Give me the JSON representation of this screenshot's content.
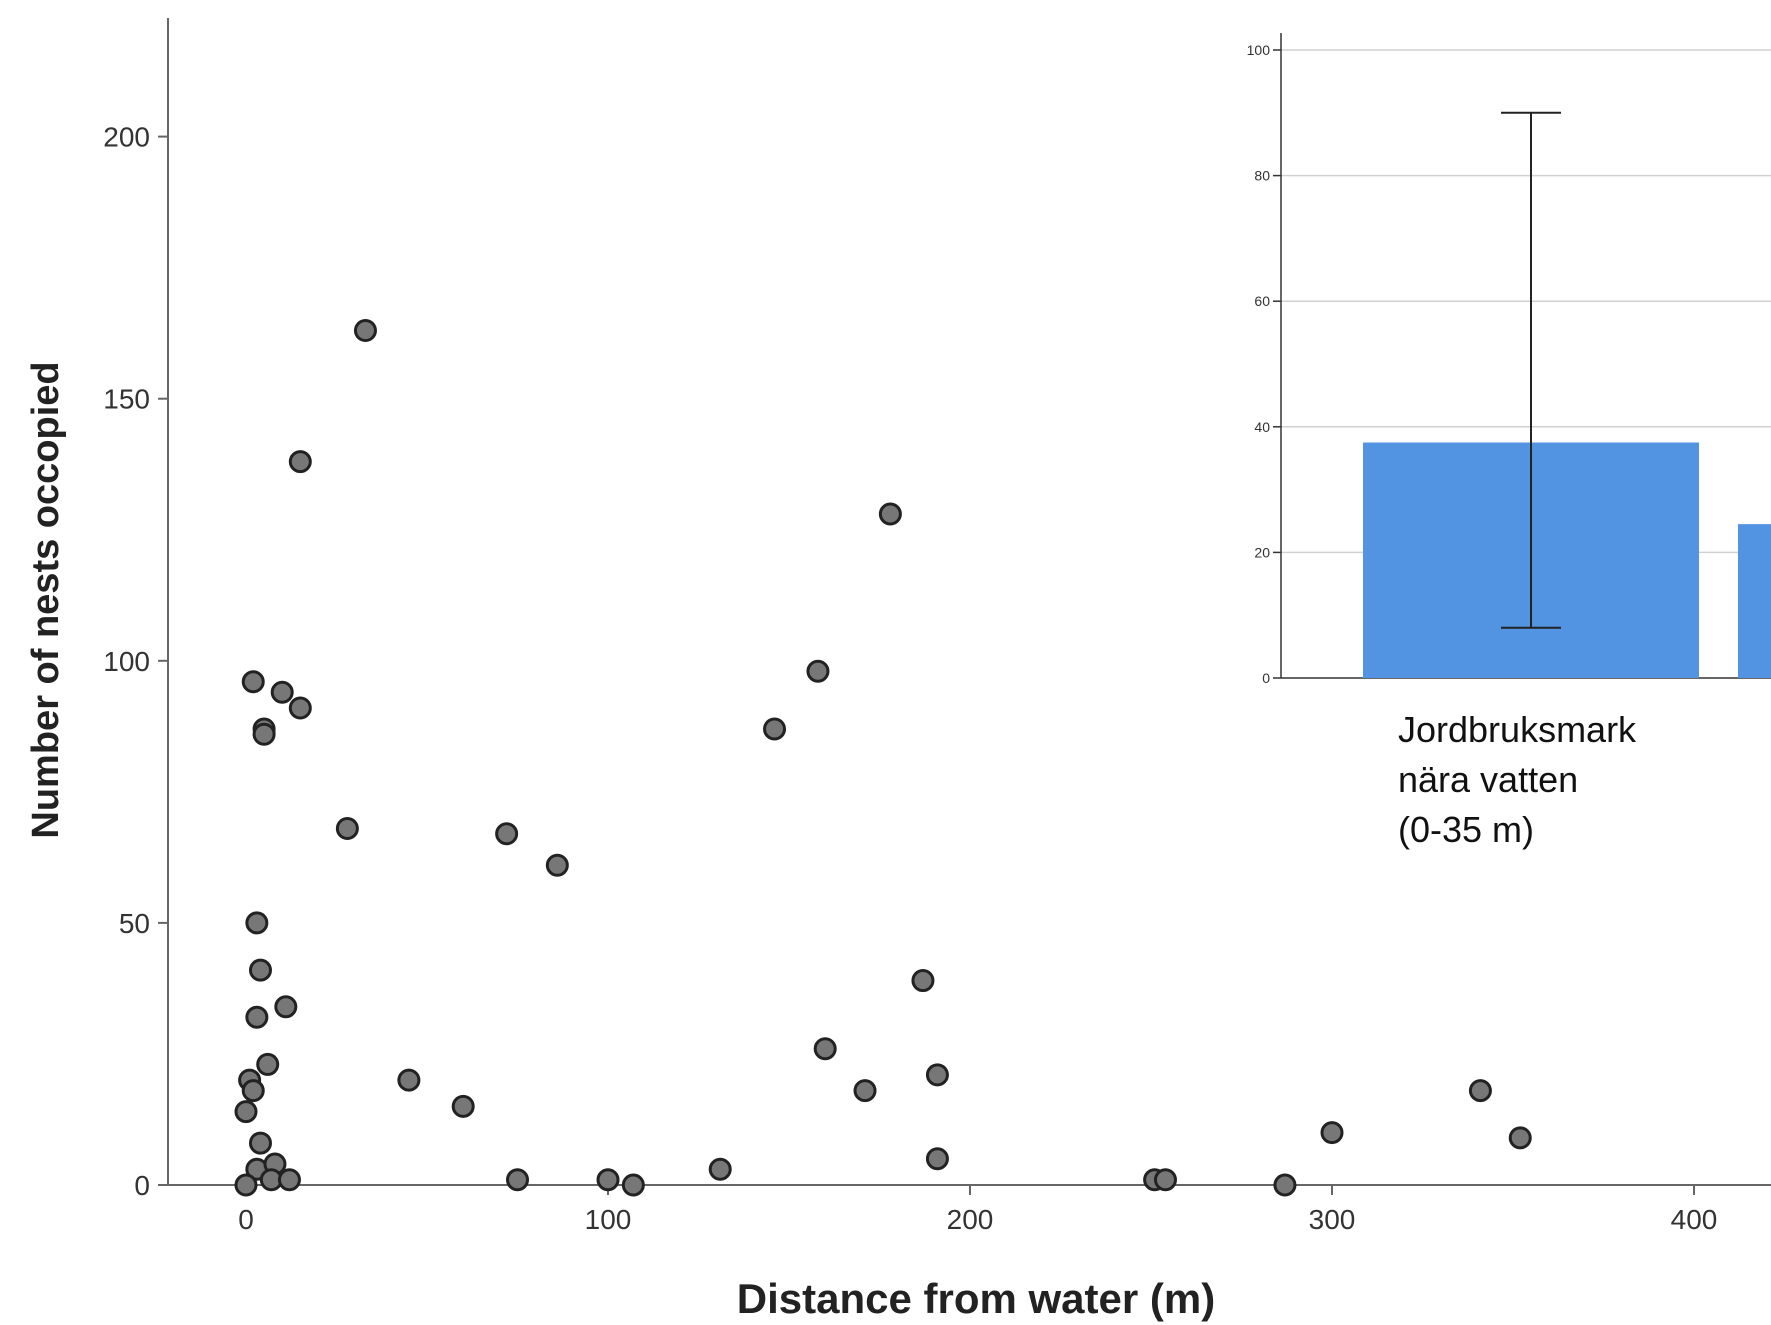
{
  "chart_data": [
    {
      "type": "scatter",
      "title": "",
      "xlabel": "Distance from water (m)",
      "ylabel": "Number of nests occopied",
      "xlim": [
        -20,
        420
      ],
      "ylim": [
        0,
        220
      ],
      "x_ticks": [
        0,
        100,
        200,
        300,
        400
      ],
      "y_ticks": [
        0,
        50,
        100,
        150,
        200
      ],
      "grid": false,
      "point_color": "#777777",
      "point_edge_color": "#222222",
      "x": [
        33,
        15,
        178,
        158,
        146,
        2,
        10,
        15,
        5,
        5,
        28,
        72,
        86,
        3,
        4,
        187,
        11,
        3,
        6,
        160,
        1,
        191,
        45,
        2,
        171,
        60,
        0,
        341,
        300,
        352,
        4,
        191,
        131,
        3,
        8,
        0,
        7,
        12,
        75,
        100,
        107,
        251,
        254,
        287
      ],
      "y": [
        163,
        138,
        128,
        98,
        87,
        96,
        94,
        91,
        87,
        86,
        68,
        67,
        61,
        50,
        41,
        39,
        34,
        32,
        23,
        26,
        20,
        21,
        20,
        18,
        18,
        15,
        14,
        18,
        10,
        9,
        8,
        5,
        3,
        3,
        4,
        0,
        1,
        1,
        1,
        1,
        0,
        1,
        1,
        0
      ]
    },
    {
      "type": "bar",
      "title": "",
      "categories": [
        "Jordbruksmark nära vatten (0-35 m)",
        ""
      ],
      "category_label_lines": [
        "Jordbruksmark",
        "nära vatten",
        "(0-35 m)"
      ],
      "values": [
        37.5,
        24.5
      ],
      "error_low": [
        8,
        null
      ],
      "error_high": [
        90,
        null
      ],
      "ylim": [
        0,
        100
      ],
      "y_ticks": [
        0,
        20,
        40,
        60,
        80,
        100
      ],
      "grid": true,
      "bar_color": "#5394e2",
      "error_bar_color": "#222222"
    }
  ]
}
